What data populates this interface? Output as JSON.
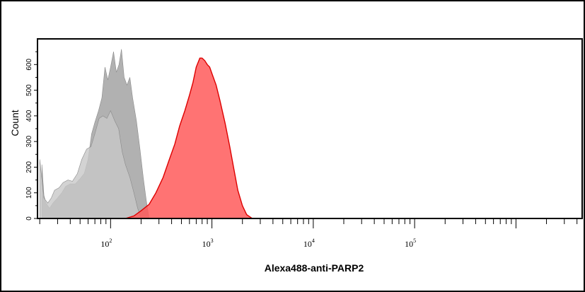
{
  "chart_data": {
    "type": "area",
    "title": "",
    "xlabel": "Alexa488-anti-PARP2",
    "ylabel": "Count",
    "x_scale": "log",
    "xlim": [
      19,
      4500000
    ],
    "ylim": [
      0,
      700
    ],
    "x_ticks": [
      {
        "value": 100,
        "base": "10",
        "exp": "2"
      },
      {
        "value": 1000,
        "base": "10",
        "exp": "3"
      },
      {
        "value": 10000,
        "base": "10",
        "exp": "4"
      },
      {
        "value": 100000,
        "base": "10",
        "exp": "5"
      }
    ],
    "y_ticks": [
      {
        "value": 0,
        "label": "0"
      },
      {
        "value": 100,
        "label": "100"
      },
      {
        "value": 200,
        "label": "200"
      },
      {
        "value": 300,
        "label": "300"
      },
      {
        "value": 400,
        "label": "400"
      },
      {
        "value": 500,
        "label": "500"
      },
      {
        "value": 600,
        "label": "600"
      }
    ],
    "series": [
      {
        "color": "#a9a9a9",
        "opacity": 0.9,
        "x": [
          21,
          22,
          23,
          25,
          27,
          30,
          33,
          36,
          40,
          45,
          50,
          55,
          60,
          65,
          70,
          76,
          82,
          88,
          94,
          100,
          107,
          114,
          121,
          128,
          136,
          145,
          155,
          165,
          180,
          195,
          210,
          225,
          240
        ],
        "y": [
          210,
          90,
          60,
          40,
          60,
          80,
          100,
          125,
          135,
          135,
          155,
          175,
          230,
          330,
          375,
          420,
          470,
          590,
          540,
          590,
          650,
          570,
          600,
          660,
          550,
          520,
          550,
          470,
          380,
          270,
          160,
          70,
          0
        ]
      },
      {
        "color": "#c8c8c8",
        "opacity": 0.8,
        "x": [
          20,
          21,
          22,
          24,
          26,
          28,
          31,
          34,
          38,
          42,
          47,
          52,
          58,
          64,
          70,
          77,
          84,
          92,
          100,
          110,
          120,
          130,
          140,
          155,
          170,
          185,
          200,
          220,
          240
        ],
        "y": [
          230,
          150,
          80,
          60,
          80,
          110,
          120,
          140,
          150,
          145,
          175,
          230,
          270,
          280,
          330,
          390,
          400,
          390,
          420,
          380,
          350,
          260,
          210,
          160,
          100,
          40,
          0,
          0,
          0
        ]
      },
      {
        "color": "#ff5a5a",
        "opacity": 0.85,
        "x": [
          140,
          170,
          200,
          240,
          280,
          330,
          380,
          430,
          480,
          540,
          600,
          650,
          700,
          760,
          800,
          850,
          900,
          950,
          1000,
          1100,
          1200,
          1350,
          1500,
          1650,
          1800,
          2000,
          2200,
          2500,
          2800
        ],
        "y": [
          0,
          10,
          30,
          55,
          100,
          160,
          230,
          290,
          360,
          420,
          480,
          530,
          590,
          625,
          625,
          615,
          600,
          590,
          565,
          520,
          460,
          370,
          280,
          190,
          110,
          50,
          15,
          0,
          0
        ]
      }
    ]
  }
}
